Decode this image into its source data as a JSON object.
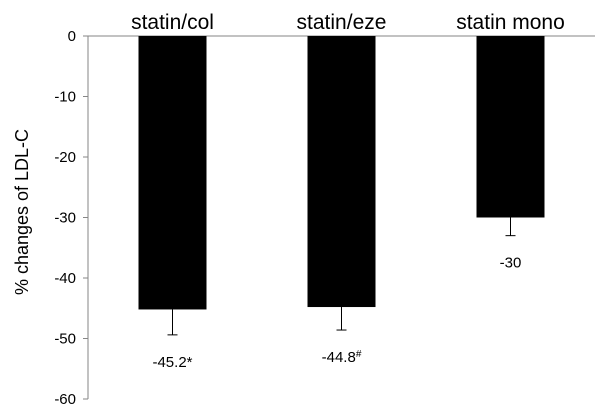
{
  "chart_data": {
    "type": "bar",
    "title": "",
    "xlabel": "",
    "ylabel": "% changes of LDL-C",
    "ylim": [
      -60,
      0
    ],
    "yticks": [
      0,
      -10,
      -20,
      -30,
      -40,
      -50,
      -60
    ],
    "grid": false,
    "categories": [
      "statin/col",
      "statin/eze",
      "statin mono"
    ],
    "values": [
      -45.2,
      -44.8,
      -30
    ],
    "error_bars": [
      4.2,
      3.8,
      3.0
    ],
    "data_labels": [
      {
        "text": "-45.2",
        "mark": "*"
      },
      {
        "text": "-44.8",
        "mark": "#"
      },
      {
        "text": "-30",
        "mark": ""
      }
    ],
    "category_position": "top",
    "bar_color": "#000000"
  }
}
